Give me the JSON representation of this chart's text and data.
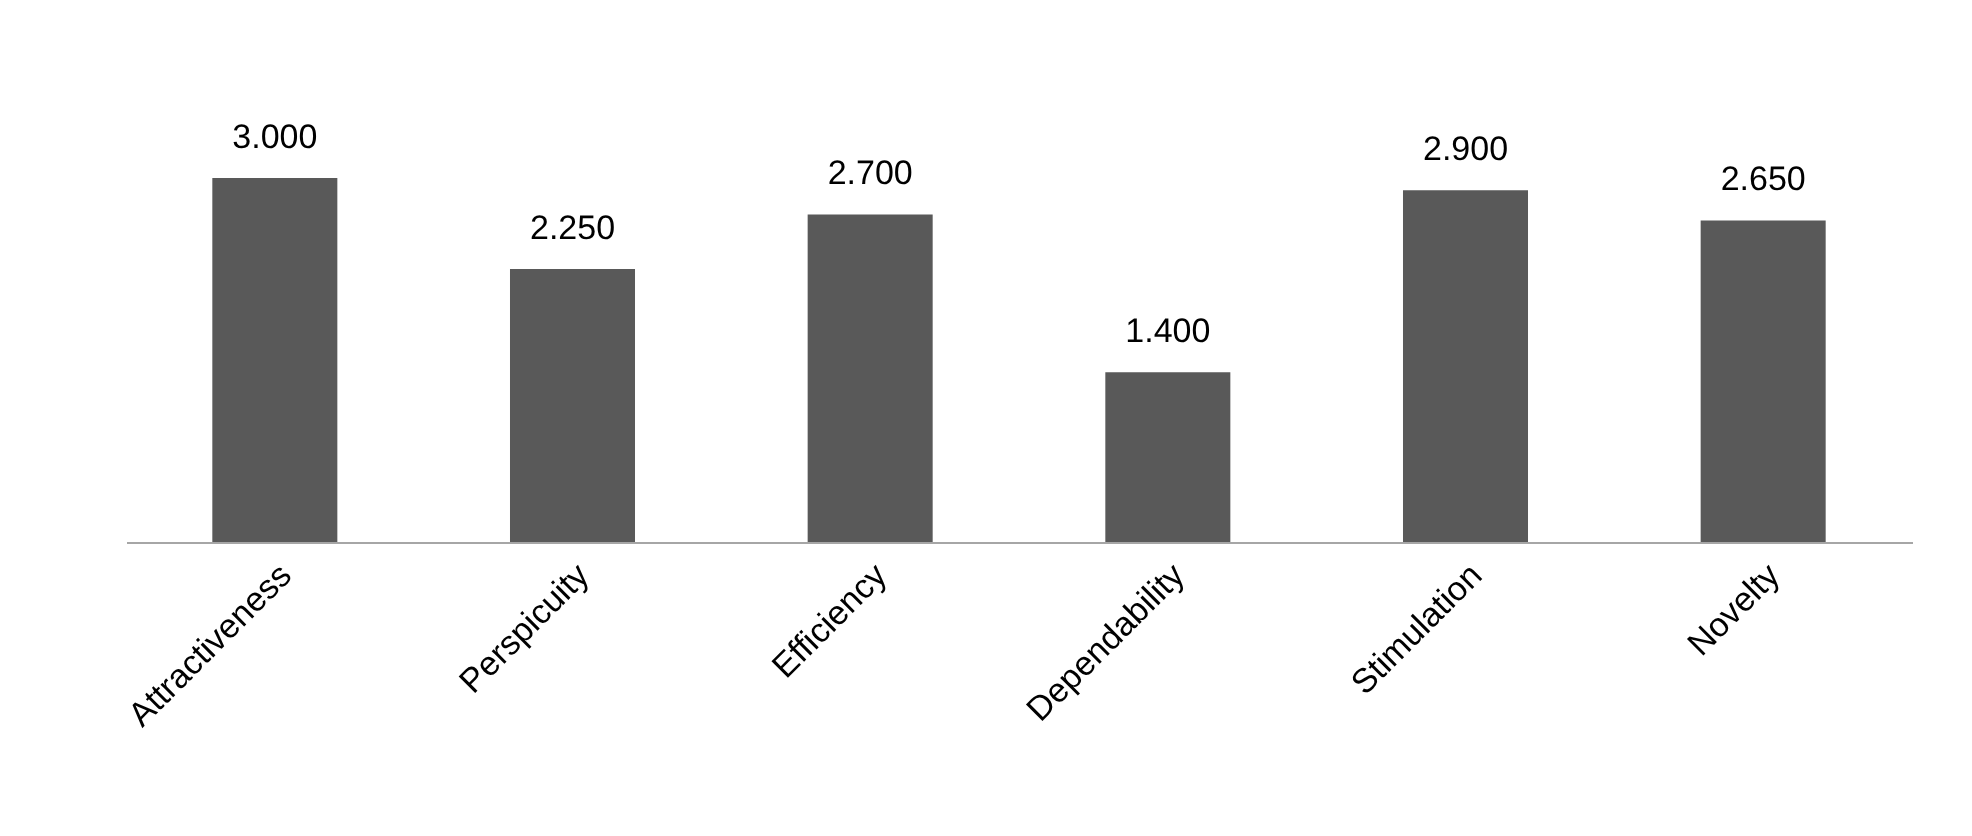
{
  "chart_data": {
    "type": "bar",
    "categories": [
      "Attractiveness",
      "Perspicuity",
      "Efficiency",
      "Dependability",
      "Stimulation",
      "Novelty"
    ],
    "values": [
      3.0,
      2.25,
      2.7,
      1.4,
      2.9,
      2.65
    ],
    "value_labels": [
      "3.000",
      "2.250",
      "2.700",
      "1.400",
      "2.900",
      "2.650"
    ],
    "color": "#595959"
  }
}
